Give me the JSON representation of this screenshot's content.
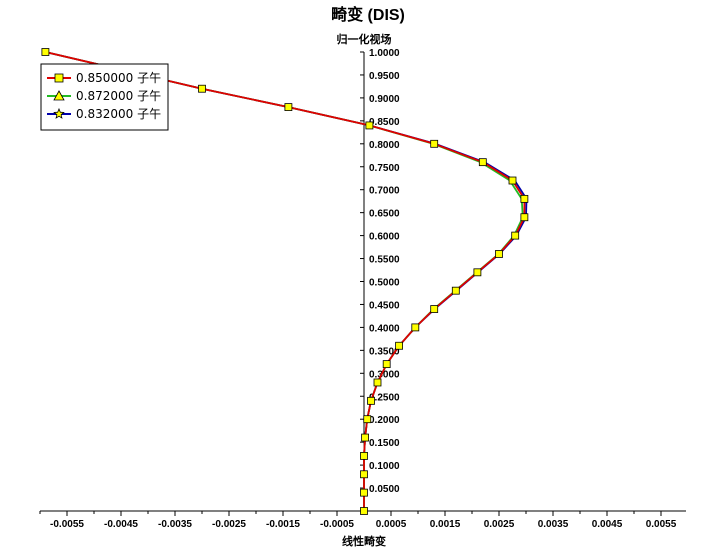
{
  "chart_data": {
    "type": "line",
    "title": "畸变 (DIS)",
    "xlabel": "线性畸变",
    "ylabel": "归一化视场",
    "xlim": [
      -0.006,
      0.006
    ],
    "ylim": [
      0.0,
      1.0
    ],
    "x_ticks": [
      "-0.0055",
      "-0.0045",
      "-0.0035",
      "-0.0025",
      "-0.0015",
      "-0.0005",
      "0.0005",
      "0.0015",
      "0.0025",
      "0.0035",
      "0.0045",
      "0.0055"
    ],
    "x_tick_values": [
      -0.0055,
      -0.0045,
      -0.0035,
      -0.0025,
      -0.0015,
      -0.0005,
      0.0005,
      0.0015,
      0.0025,
      0.0035,
      0.0045,
      0.0055
    ],
    "y_ticks": [
      "1.0000",
      "0.9500",
      "0.9000",
      "0.8500",
      "0.8000",
      "0.7500",
      "0.7000",
      "0.6500",
      "0.6000",
      "0.5500",
      "0.5000",
      "0.4500",
      "0.4000",
      "0.3500",
      "0.3000",
      "0.2500",
      "0.2000",
      "0.1500",
      "0.1000",
      "0.0500"
    ],
    "y_tick_values": [
      1.0,
      0.95,
      0.9,
      0.85,
      0.8,
      0.75,
      0.7,
      0.65,
      0.6,
      0.55,
      0.5,
      0.45,
      0.4,
      0.35,
      0.3,
      0.25,
      0.2,
      0.15,
      0.1,
      0.05
    ],
    "legend_position": "top-left",
    "grid": false,
    "series": [
      {
        "name": "0.850000 子午",
        "color": "#e00000",
        "marker": "square",
        "marker_color": "#ffff00",
        "points": [
          [
            -0.0059,
            1.0
          ],
          [
            -0.003,
            0.92
          ],
          [
            -0.0014,
            0.88
          ],
          [
            0.0001,
            0.84
          ],
          [
            0.0013,
            0.8
          ],
          [
            0.0022,
            0.76
          ],
          [
            0.00275,
            0.72
          ],
          [
            0.00297,
            0.68
          ],
          [
            0.00297,
            0.64
          ],
          [
            0.0028,
            0.6
          ],
          [
            0.0025,
            0.56
          ],
          [
            0.0021,
            0.52
          ],
          [
            0.0017,
            0.48
          ],
          [
            0.0013,
            0.44
          ],
          [
            0.00095,
            0.4
          ],
          [
            0.00065,
            0.36
          ],
          [
            0.00042,
            0.32
          ],
          [
            0.00025,
            0.28
          ],
          [
            0.00013,
            0.24
          ],
          [
            6e-05,
            0.2
          ],
          [
            2e-05,
            0.16
          ],
          [
            0.0,
            0.12
          ],
          [
            0.0,
            0.08
          ],
          [
            0.0,
            0.04
          ],
          [
            0.0,
            0.0
          ]
        ]
      },
      {
        "name": "0.872000 子午",
        "color": "#22bb22",
        "marker": "triangle",
        "marker_color": "#ffff00",
        "points": [
          [
            -0.0059,
            1.0
          ],
          [
            -0.003,
            0.92
          ],
          [
            -0.0014,
            0.88
          ],
          [
            0.0001,
            0.84
          ],
          [
            0.00128,
            0.8
          ],
          [
            0.00216,
            0.76
          ],
          [
            0.0027,
            0.72
          ],
          [
            0.00292,
            0.68
          ],
          [
            0.00294,
            0.64
          ],
          [
            0.00278,
            0.6
          ],
          [
            0.00249,
            0.56
          ],
          [
            0.00209,
            0.52
          ],
          [
            0.00169,
            0.48
          ],
          [
            0.00129,
            0.44
          ],
          [
            0.00095,
            0.4
          ],
          [
            0.00065,
            0.36
          ],
          [
            0.00042,
            0.32
          ],
          [
            0.00025,
            0.28
          ],
          [
            0.00013,
            0.24
          ],
          [
            6e-05,
            0.2
          ],
          [
            2e-05,
            0.16
          ],
          [
            0.0,
            0.12
          ],
          [
            0.0,
            0.08
          ],
          [
            0.0,
            0.04
          ],
          [
            0.0,
            0.0
          ]
        ]
      },
      {
        "name": "0.832000 子午",
        "color": "#0000aa",
        "marker": "star",
        "marker_color": "#ffff00",
        "points": [
          [
            -0.0059,
            1.0
          ],
          [
            -0.003,
            0.92
          ],
          [
            -0.0014,
            0.88
          ],
          [
            0.0001,
            0.84
          ],
          [
            0.00132,
            0.8
          ],
          [
            0.00223,
            0.76
          ],
          [
            0.00279,
            0.72
          ],
          [
            0.00301,
            0.68
          ],
          [
            0.003,
            0.64
          ],
          [
            0.00282,
            0.6
          ],
          [
            0.00251,
            0.56
          ],
          [
            0.00211,
            0.52
          ],
          [
            0.00171,
            0.48
          ],
          [
            0.00131,
            0.44
          ],
          [
            0.00095,
            0.4
          ],
          [
            0.00065,
            0.36
          ],
          [
            0.00042,
            0.32
          ],
          [
            0.00025,
            0.28
          ],
          [
            0.00013,
            0.24
          ],
          [
            6e-05,
            0.2
          ],
          [
            2e-05,
            0.16
          ],
          [
            0.0,
            0.12
          ],
          [
            0.0,
            0.08
          ],
          [
            0.0,
            0.04
          ],
          [
            0.0,
            0.0
          ]
        ]
      }
    ],
    "marker_points": [
      [
        -0.0059,
        1.0
      ],
      [
        -0.003,
        0.92
      ],
      [
        -0.0014,
        0.88
      ],
      [
        0.0001,
        0.84
      ],
      [
        0.0013,
        0.8
      ],
      [
        0.0022,
        0.76
      ],
      [
        0.00275,
        0.72
      ],
      [
        0.00297,
        0.68
      ],
      [
        0.00297,
        0.64
      ],
      [
        0.0028,
        0.6
      ],
      [
        0.0025,
        0.56
      ],
      [
        0.0021,
        0.52
      ],
      [
        0.0017,
        0.48
      ],
      [
        0.0013,
        0.44
      ],
      [
        0.00095,
        0.4
      ],
      [
        0.00065,
        0.36
      ],
      [
        0.00042,
        0.32
      ],
      [
        0.00025,
        0.28
      ],
      [
        0.00013,
        0.24
      ],
      [
        6e-05,
        0.2
      ],
      [
        2e-05,
        0.16
      ],
      [
        0.0,
        0.12
      ],
      [
        0.0,
        0.08
      ],
      [
        0.0,
        0.04
      ],
      [
        0.0,
        0.0
      ]
    ]
  }
}
